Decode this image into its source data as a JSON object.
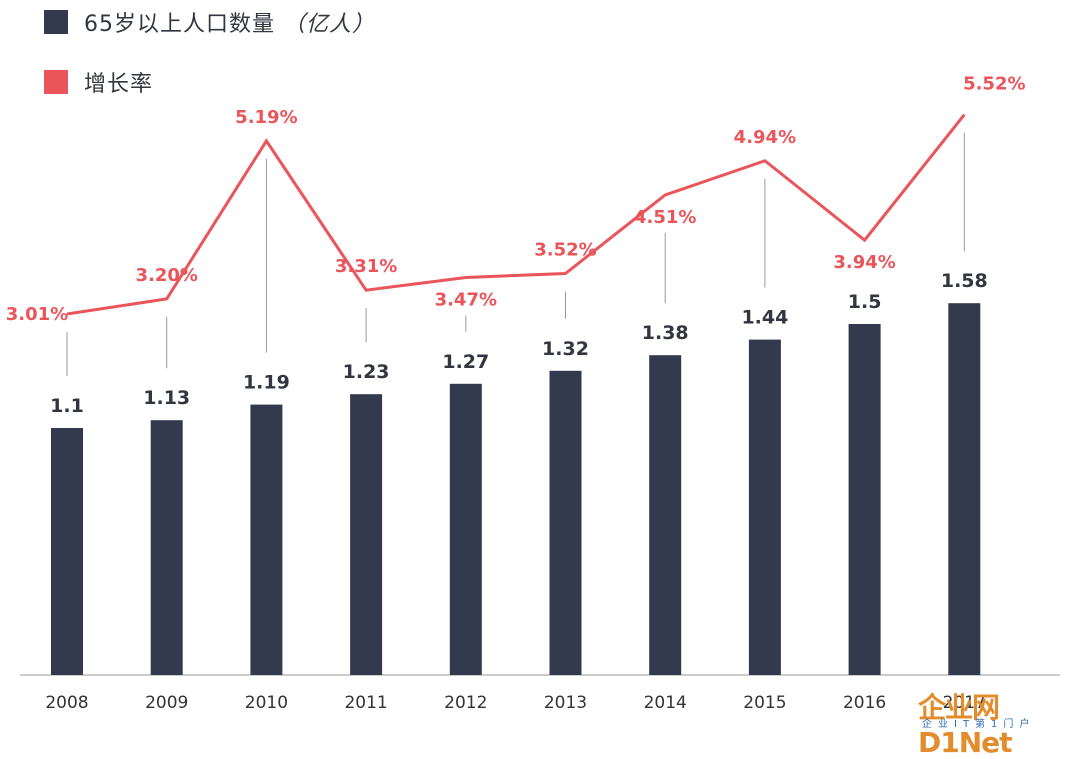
{
  "legend": {
    "bars_label": "65岁以上人口数量",
    "bars_unit": "（亿人）",
    "line_label": "增长率"
  },
  "colors": {
    "bar": "#333a4d",
    "line": "#e9555a",
    "connector": "#9a9a9a",
    "axis": "#999999"
  },
  "chart_data": {
    "type": "bar",
    "categories": [
      "2008",
      "2009",
      "2010",
      "2011",
      "2012",
      "2013",
      "2014",
      "2015",
      "2016",
      "2017"
    ],
    "series": [
      {
        "name": "65岁以上人口数量（亿人）",
        "type": "bar",
        "values": [
          1.1,
          1.13,
          1.19,
          1.23,
          1.27,
          1.32,
          1.38,
          1.44,
          1.5,
          1.58
        ],
        "labels": [
          "1.1",
          "1.13",
          "1.19",
          "1.23",
          "1.27",
          "1.32",
          "1.38",
          "1.44",
          "1.5",
          "1.58"
        ]
      },
      {
        "name": "增长率",
        "type": "line",
        "values": [
          3.01,
          3.2,
          5.19,
          3.31,
          3.47,
          3.52,
          4.51,
          4.94,
          3.94,
          5.52
        ],
        "labels": [
          "3.01%",
          "3.20%",
          "5.19%",
          "3.31%",
          "3.47%",
          "3.52%",
          "4.51%",
          "4.94%",
          "3.94%",
          "5.52%"
        ]
      }
    ],
    "legend_position": "top-left",
    "grid": false
  },
  "watermark": {
    "main": "企业网D1Net",
    "sub": "企业IT第1门户"
  }
}
